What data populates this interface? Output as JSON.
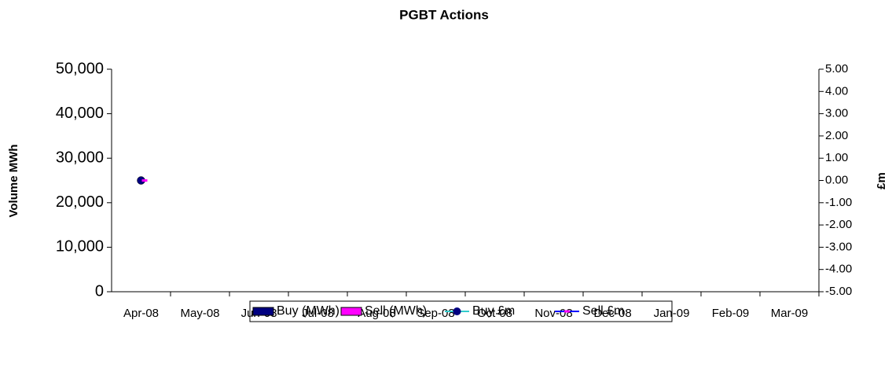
{
  "chart_data": {
    "type": "bar",
    "title": "PGBT Actions",
    "ylabel": "Volume MWh",
    "y2label": "£m",
    "categories": [
      "Apr-08",
      "May-08",
      "Jun-08",
      "Jul-08",
      "Aug-08",
      "Sep-08",
      "Oct-08",
      "Nov-08",
      "Dec-08",
      "Jan-09",
      "Feb-09",
      "Mar-09"
    ],
    "series": [
      {
        "name": "Buy (MWh)",
        "type": "bar",
        "color": "#000080",
        "values": [
          0,
          null,
          null,
          null,
          null,
          null,
          null,
          null,
          null,
          null,
          null,
          null
        ]
      },
      {
        "name": "Sell (MWh)",
        "type": "bar",
        "color": "#ff00ff",
        "values": [
          0,
          null,
          null,
          null,
          null,
          null,
          null,
          null,
          null,
          null,
          null,
          null
        ]
      },
      {
        "name": "Buy £m",
        "type": "line",
        "axis": "y2",
        "color": "#33cccc",
        "marker_color": "#000080",
        "marker": "circle",
        "values": [
          0,
          null,
          null,
          null,
          null,
          null,
          null,
          null,
          null,
          null,
          null,
          null
        ]
      },
      {
        "name": "Sell £m",
        "type": "line",
        "axis": "y2",
        "color": "#0000ff",
        "marker_color": "#ff00ff",
        "marker": "dash",
        "values": [
          0,
          null,
          null,
          null,
          null,
          null,
          null,
          null,
          null,
          null,
          null,
          null
        ]
      }
    ],
    "ylim": [
      0,
      50000
    ],
    "yticks": [
      0,
      {
        "value": 10000,
        "label": "10,000"
      },
      {
        "value": 20000,
        "label": "20,000"
      },
      {
        "value": 30000,
        "label": "30,000"
      },
      {
        "value": 40000,
        "label": "40,000"
      },
      {
        "value": 50000,
        "label": "50,000"
      }
    ],
    "y2lim": [
      -5,
      5
    ],
    "y2ticks": [
      {
        "value": -5,
        "label": "-5.00"
      },
      {
        "value": -4,
        "label": "-4.00"
      },
      {
        "value": -3,
        "label": "-3.00"
      },
      {
        "value": -2,
        "label": "-2.00"
      },
      {
        "value": -1,
        "label": "-1.00"
      },
      {
        "value": 0,
        "label": "0.00"
      },
      {
        "value": 1,
        "label": "1.00"
      },
      {
        "value": 2,
        "label": "2.00"
      },
      {
        "value": 3,
        "label": "3.00"
      },
      {
        "value": 4,
        "label": "4.00"
      },
      {
        "value": 5,
        "label": "5.00"
      }
    ],
    "grid": false,
    "legend": "bottom"
  }
}
